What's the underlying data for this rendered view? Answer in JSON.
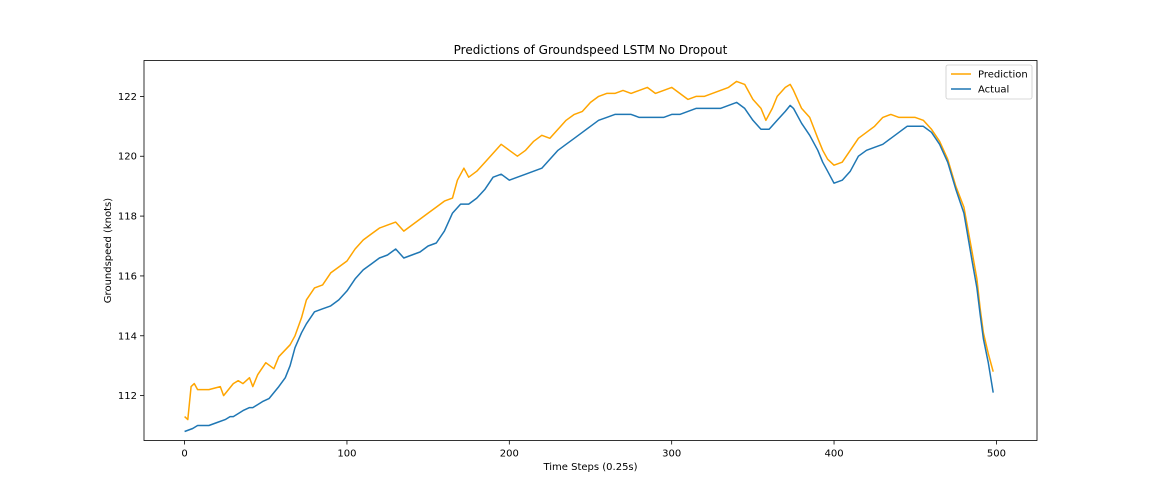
{
  "chart_data": {
    "type": "line",
    "title": "Predictions of Groundspeed LSTM No Dropout",
    "xlabel": "Time Steps (0.25s)",
    "ylabel": "Groundspeed (knots)",
    "xlim": [
      -25,
      525
    ],
    "ylim": [
      110.5,
      123.2
    ],
    "xticks": [
      0,
      100,
      200,
      300,
      400,
      500
    ],
    "yticks": [
      112,
      114,
      116,
      118,
      120,
      122
    ],
    "grid": false,
    "legend_position": "top-right",
    "series": [
      {
        "name": "Prediction",
        "color": "#ffa500",
        "x": [
          0,
          2,
          4,
          6,
          8,
          15,
          22,
          24,
          30,
          33,
          36,
          40,
          42,
          45,
          50,
          55,
          58,
          65,
          68,
          72,
          75,
          80,
          85,
          90,
          95,
          100,
          105,
          110,
          115,
          120,
          125,
          130,
          135,
          140,
          145,
          150,
          155,
          160,
          165,
          168,
          172,
          175,
          180,
          185,
          190,
          195,
          200,
          205,
          210,
          215,
          220,
          225,
          230,
          235,
          240,
          245,
          250,
          255,
          260,
          265,
          270,
          275,
          280,
          285,
          290,
          295,
          300,
          305,
          310,
          315,
          320,
          325,
          330,
          335,
          340,
          345,
          350,
          355,
          358,
          362,
          365,
          370,
          373,
          375,
          380,
          385,
          390,
          393,
          396,
          400,
          405,
          410,
          415,
          420,
          425,
          430,
          435,
          440,
          445,
          450,
          455,
          460,
          465,
          470,
          475,
          480,
          485,
          488,
          490,
          492,
          495,
          498
        ],
        "values": [
          111.3,
          111.2,
          112.3,
          112.4,
          112.2,
          112.2,
          112.3,
          112.0,
          112.4,
          112.5,
          112.4,
          112.6,
          112.3,
          112.7,
          113.1,
          112.9,
          113.3,
          113.7,
          114.0,
          114.6,
          115.2,
          115.6,
          115.7,
          116.1,
          116.3,
          116.5,
          116.9,
          117.2,
          117.4,
          117.6,
          117.7,
          117.8,
          117.5,
          117.7,
          117.9,
          118.1,
          118.3,
          118.5,
          118.6,
          119.2,
          119.6,
          119.3,
          119.5,
          119.8,
          120.1,
          120.4,
          120.2,
          120.0,
          120.2,
          120.5,
          120.7,
          120.6,
          120.9,
          121.2,
          121.4,
          121.5,
          121.8,
          122.0,
          122.1,
          122.1,
          122.2,
          122.1,
          122.2,
          122.3,
          122.1,
          122.2,
          122.3,
          122.1,
          121.9,
          122.0,
          122.0,
          122.1,
          122.2,
          122.3,
          122.5,
          122.4,
          121.9,
          121.6,
          121.2,
          121.6,
          122.0,
          122.3,
          122.4,
          122.2,
          121.6,
          121.3,
          120.6,
          120.2,
          119.9,
          119.7,
          119.8,
          120.2,
          120.6,
          120.8,
          121.0,
          121.3,
          121.4,
          121.3,
          121.3,
          121.3,
          121.2,
          120.9,
          120.5,
          119.9,
          119.0,
          118.3,
          116.8,
          115.9,
          114.9,
          114.1,
          113.4,
          112.8
        ]
      },
      {
        "name": "Actual",
        "color": "#1f77b4",
        "x": [
          0,
          5,
          8,
          12,
          15,
          20,
          25,
          28,
          30,
          33,
          36,
          40,
          42,
          45,
          48,
          52,
          55,
          58,
          62,
          65,
          68,
          72,
          75,
          80,
          85,
          90,
          95,
          100,
          105,
          110,
          115,
          120,
          125,
          130,
          135,
          140,
          145,
          150,
          155,
          160,
          165,
          170,
          175,
          180,
          185,
          190,
          195,
          200,
          205,
          210,
          215,
          220,
          225,
          230,
          235,
          240,
          245,
          250,
          255,
          260,
          265,
          270,
          275,
          280,
          285,
          290,
          295,
          300,
          305,
          310,
          315,
          320,
          325,
          330,
          335,
          340,
          345,
          350,
          355,
          360,
          365,
          370,
          373,
          375,
          380,
          385,
          390,
          393,
          396,
          400,
          405,
          410,
          415,
          420,
          425,
          430,
          435,
          440,
          445,
          450,
          455,
          460,
          465,
          470,
          475,
          480,
          485,
          488,
          490,
          492,
          495,
          498
        ],
        "values": [
          110.8,
          110.9,
          111.0,
          111.0,
          111.0,
          111.1,
          111.2,
          111.3,
          111.3,
          111.4,
          111.5,
          111.6,
          111.6,
          111.7,
          111.8,
          111.9,
          112.1,
          112.3,
          112.6,
          113.0,
          113.6,
          114.1,
          114.4,
          114.8,
          114.9,
          115.0,
          115.2,
          115.5,
          115.9,
          116.2,
          116.4,
          116.6,
          116.7,
          116.9,
          116.6,
          116.7,
          116.8,
          117.0,
          117.1,
          117.5,
          118.1,
          118.4,
          118.4,
          118.6,
          118.9,
          119.3,
          119.4,
          119.2,
          119.3,
          119.4,
          119.5,
          119.6,
          119.9,
          120.2,
          120.4,
          120.6,
          120.8,
          121.0,
          121.2,
          121.3,
          121.4,
          121.4,
          121.4,
          121.3,
          121.3,
          121.3,
          121.3,
          121.4,
          121.4,
          121.5,
          121.6,
          121.6,
          121.6,
          121.6,
          121.7,
          121.8,
          121.6,
          121.2,
          120.9,
          120.9,
          121.2,
          121.5,
          121.7,
          121.6,
          121.1,
          120.7,
          120.2,
          119.8,
          119.5,
          119.1,
          119.2,
          119.5,
          120.0,
          120.2,
          120.3,
          120.4,
          120.6,
          120.8,
          121.0,
          121.0,
          121.0,
          120.8,
          120.4,
          119.8,
          118.9,
          118.1,
          116.5,
          115.6,
          114.7,
          113.9,
          113.1,
          112.1
        ]
      }
    ]
  }
}
